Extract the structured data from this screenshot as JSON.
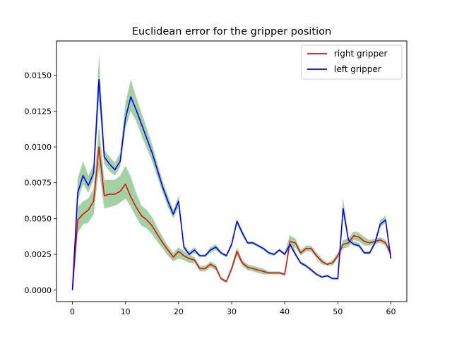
{
  "chart_data": {
    "type": "line",
    "title": "Euclidean error for the gripper position",
    "xlabel": "",
    "ylabel": "",
    "xlim": [
      -3,
      63
    ],
    "ylim": [
      -0.0008,
      0.0174
    ],
    "xticks": [
      0,
      10,
      20,
      30,
      40,
      50,
      60
    ],
    "xtick_labels": [
      "0",
      "10",
      "20",
      "30",
      "40",
      "50",
      "60"
    ],
    "yticks": [
      0.0,
      0.0025,
      0.005,
      0.0075,
      0.01,
      0.0125,
      0.015
    ],
    "ytick_labels": [
      "0.0000",
      "0.0025",
      "0.0050",
      "0.0075",
      "0.0100",
      "0.0125",
      "0.0150"
    ],
    "grid": false,
    "legend_position": "top-right",
    "band_color": "#99cc99",
    "x": [
      0,
      1,
      2,
      3,
      4,
      5,
      6,
      7,
      8,
      9,
      10,
      11,
      12,
      13,
      14,
      15,
      16,
      17,
      18,
      19,
      20,
      21,
      22,
      23,
      24,
      25,
      26,
      27,
      28,
      29,
      30,
      31,
      32,
      33,
      34,
      35,
      36,
      37,
      38,
      39,
      40,
      41,
      42,
      43,
      44,
      45,
      46,
      47,
      48,
      49,
      50,
      51,
      52,
      53,
      54,
      55,
      56,
      57,
      58,
      59,
      60
    ],
    "series": [
      {
        "name": "right gripper",
        "color": "#dd1111",
        "values": [
          0.0,
          0.0049,
          0.0053,
          0.0056,
          0.0062,
          0.01,
          0.0066,
          0.0067,
          0.0067,
          0.0069,
          0.0074,
          0.0065,
          0.0058,
          0.0052,
          0.0049,
          0.0045,
          0.0039,
          0.0033,
          0.0028,
          0.0023,
          0.0027,
          0.0024,
          0.0022,
          0.0021,
          0.0015,
          0.0015,
          0.0018,
          0.0016,
          0.0008,
          0.0006,
          0.0015,
          0.0027,
          0.0019,
          0.0016,
          0.0015,
          0.0014,
          0.0013,
          0.0012,
          0.0012,
          0.0012,
          0.0011,
          0.0034,
          0.0033,
          0.0026,
          0.0029,
          0.0029,
          0.0024,
          0.002,
          0.0018,
          0.0019,
          0.0024,
          0.0032,
          0.0033,
          0.0038,
          0.0037,
          0.0034,
          0.0033,
          0.0034,
          0.0035,
          0.0033,
          0.0025
        ],
        "band_lower": [
          0.0,
          0.004,
          0.0046,
          0.0047,
          0.0053,
          0.0085,
          0.0057,
          0.0058,
          0.0059,
          0.0061,
          0.0064,
          0.0058,
          0.0051,
          0.0045,
          0.0043,
          0.0039,
          0.0034,
          0.0029,
          0.0024,
          0.002,
          0.0022,
          0.0021,
          0.0019,
          0.0019,
          0.0013,
          0.0013,
          0.0016,
          0.0014,
          0.0007,
          0.0005,
          0.0013,
          0.0024,
          0.0017,
          0.0014,
          0.0013,
          0.0012,
          0.0011,
          0.0011,
          0.0011,
          0.0011,
          0.001,
          0.003,
          0.003,
          0.0024,
          0.0027,
          0.0027,
          0.0022,
          0.0018,
          0.0017,
          0.0017,
          0.0022,
          0.0029,
          0.003,
          0.0035,
          0.0034,
          0.0031,
          0.0031,
          0.0032,
          0.0033,
          0.0031,
          0.0023
        ],
        "band_upper": [
          0.0,
          0.0058,
          0.0062,
          0.0064,
          0.0071,
          0.0115,
          0.0077,
          0.0077,
          0.0077,
          0.008,
          0.0087,
          0.0079,
          0.0068,
          0.0059,
          0.0056,
          0.0051,
          0.0044,
          0.0037,
          0.0031,
          0.0026,
          0.003,
          0.0027,
          0.0025,
          0.0023,
          0.0017,
          0.0017,
          0.002,
          0.0018,
          0.0009,
          0.0007,
          0.0017,
          0.003,
          0.0021,
          0.0018,
          0.0017,
          0.0016,
          0.0015,
          0.0013,
          0.0013,
          0.0013,
          0.0012,
          0.0038,
          0.0036,
          0.0028,
          0.0031,
          0.0031,
          0.0026,
          0.0022,
          0.0019,
          0.0021,
          0.0026,
          0.0035,
          0.0036,
          0.0041,
          0.004,
          0.0037,
          0.0035,
          0.0036,
          0.0037,
          0.0035,
          0.0027
        ]
      },
      {
        "name": "left gripper",
        "color": "#0000ee",
        "values": [
          0.0,
          0.0068,
          0.008,
          0.0073,
          0.0082,
          0.0147,
          0.0093,
          0.0088,
          0.0084,
          0.009,
          0.012,
          0.0135,
          0.0126,
          0.0116,
          0.0106,
          0.0096,
          0.0084,
          0.0072,
          0.0062,
          0.0053,
          0.0062,
          0.003,
          0.0025,
          0.0028,
          0.0024,
          0.0024,
          0.0028,
          0.003,
          0.0026,
          0.0024,
          0.0032,
          0.0048,
          0.004,
          0.0033,
          0.0033,
          0.0031,
          0.0029,
          0.0026,
          0.0025,
          0.0028,
          0.0025,
          0.0032,
          0.0025,
          0.0019,
          0.0017,
          0.0014,
          0.0011,
          0.0009,
          0.001,
          0.0008,
          0.0008,
          0.0057,
          0.0035,
          0.0032,
          0.0031,
          0.0026,
          0.0026,
          0.0033,
          0.0046,
          0.0049,
          0.0022
        ],
        "band_lower": [
          0.0,
          0.0062,
          0.0074,
          0.0068,
          0.0077,
          0.0133,
          0.0088,
          0.0083,
          0.008,
          0.0086,
          0.0113,
          0.0125,
          0.0118,
          0.0108,
          0.0099,
          0.009,
          0.0079,
          0.0068,
          0.0058,
          0.005,
          0.0058,
          0.0028,
          0.0024,
          0.0026,
          0.0023,
          0.0023,
          0.0026,
          0.0028,
          0.0025,
          0.0023,
          0.003,
          0.0046,
          0.0038,
          0.0032,
          0.0032,
          0.003,
          0.0028,
          0.0025,
          0.0024,
          0.0027,
          0.0024,
          0.003,
          0.0024,
          0.0018,
          0.0016,
          0.0013,
          0.001,
          0.0009,
          0.001,
          0.0008,
          0.0008,
          0.0053,
          0.0033,
          0.0031,
          0.003,
          0.0025,
          0.0025,
          0.0031,
          0.0044,
          0.0047,
          0.0021
        ],
        "band_upper": [
          0.0,
          0.0078,
          0.009,
          0.008,
          0.0088,
          0.0165,
          0.0098,
          0.0093,
          0.0089,
          0.0096,
          0.0131,
          0.0147,
          0.0135,
          0.0124,
          0.0113,
          0.0102,
          0.0089,
          0.0076,
          0.0066,
          0.0056,
          0.0066,
          0.0032,
          0.0027,
          0.003,
          0.0025,
          0.0025,
          0.003,
          0.0032,
          0.0027,
          0.0025,
          0.0034,
          0.005,
          0.0042,
          0.0034,
          0.0034,
          0.0032,
          0.003,
          0.0027,
          0.0026,
          0.0029,
          0.0026,
          0.0039,
          0.0027,
          0.002,
          0.0018,
          0.0015,
          0.0012,
          0.001,
          0.0011,
          0.0009,
          0.0009,
          0.0064,
          0.0037,
          0.0034,
          0.0033,
          0.0027,
          0.0027,
          0.0035,
          0.0049,
          0.0052,
          0.0024
        ]
      }
    ]
  }
}
